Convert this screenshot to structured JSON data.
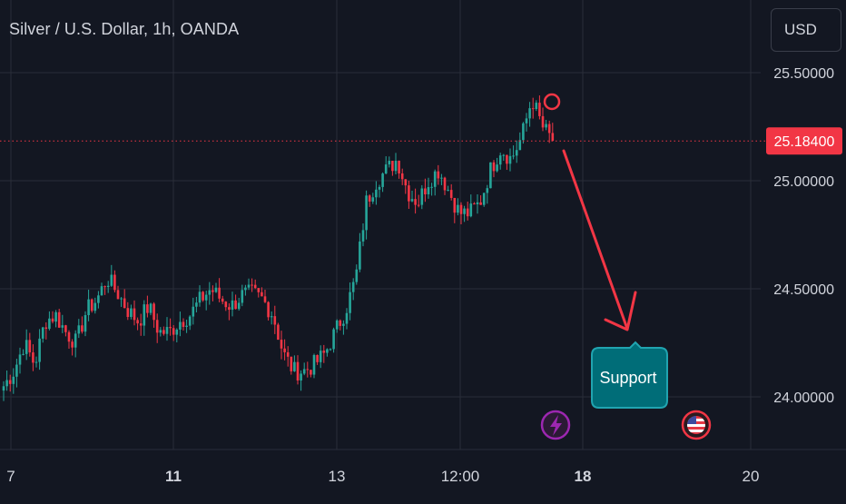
{
  "header": {
    "symbol_title": "Silver / U.S. Dollar, 1h, OANDA",
    "currency_label": "USD"
  },
  "chart_data": {
    "type": "candlestick",
    "title": "Silver / U.S. Dollar, 1h, OANDA",
    "y_ticks": [
      "25.50000",
      "25.00000",
      "24.50000",
      "24.00000"
    ],
    "y_tick_values": [
      25.5,
      25.0,
      24.5,
      24.0
    ],
    "ylim": [
      23.8,
      25.8
    ],
    "x_ticks": [
      "7",
      "11",
      "13",
      "12:00",
      "18",
      "20"
    ],
    "x_tick_bold": [
      false,
      true,
      false,
      false,
      true,
      false
    ],
    "current_price": "25.18400",
    "current_price_value": 25.184,
    "colors": {
      "up": "#26a69a",
      "down": "#f23645",
      "grid": "#2a2e39",
      "text": "#d1d4dc",
      "price_tag": "#f23645",
      "annotation_arrow": "#f23645",
      "callout_fill": "#006d78",
      "callout_border": "#21a4b0",
      "lightning_badge": "#9c27b0",
      "flag_badge": "#f23645"
    },
    "grid": true,
    "price_path": [
      24.05,
      24.12,
      24.25,
      24.15,
      24.35,
      24.38,
      24.3,
      24.25,
      24.4,
      24.45,
      24.55,
      24.48,
      24.4,
      24.35,
      24.42,
      24.3,
      24.3,
      24.35,
      24.38,
      24.45,
      24.5,
      24.45,
      24.42,
      24.47,
      24.48,
      24.45,
      24.38,
      24.2,
      24.12,
      24.12,
      24.15,
      24.2,
      24.3,
      24.4,
      24.55,
      24.9,
      25.0,
      25.05,
      25.1,
      24.95,
      24.9,
      25.0,
      25.05,
      24.95,
      24.85,
      24.85,
      24.9,
      25.05,
      25.15,
      25.1,
      25.2,
      25.38,
      25.25,
      25.184
    ],
    "annotations": {
      "callout_text": "Support",
      "arrow_direction": "down"
    },
    "event_icons": [
      "lightning-icon",
      "us-flag-icon"
    ]
  }
}
